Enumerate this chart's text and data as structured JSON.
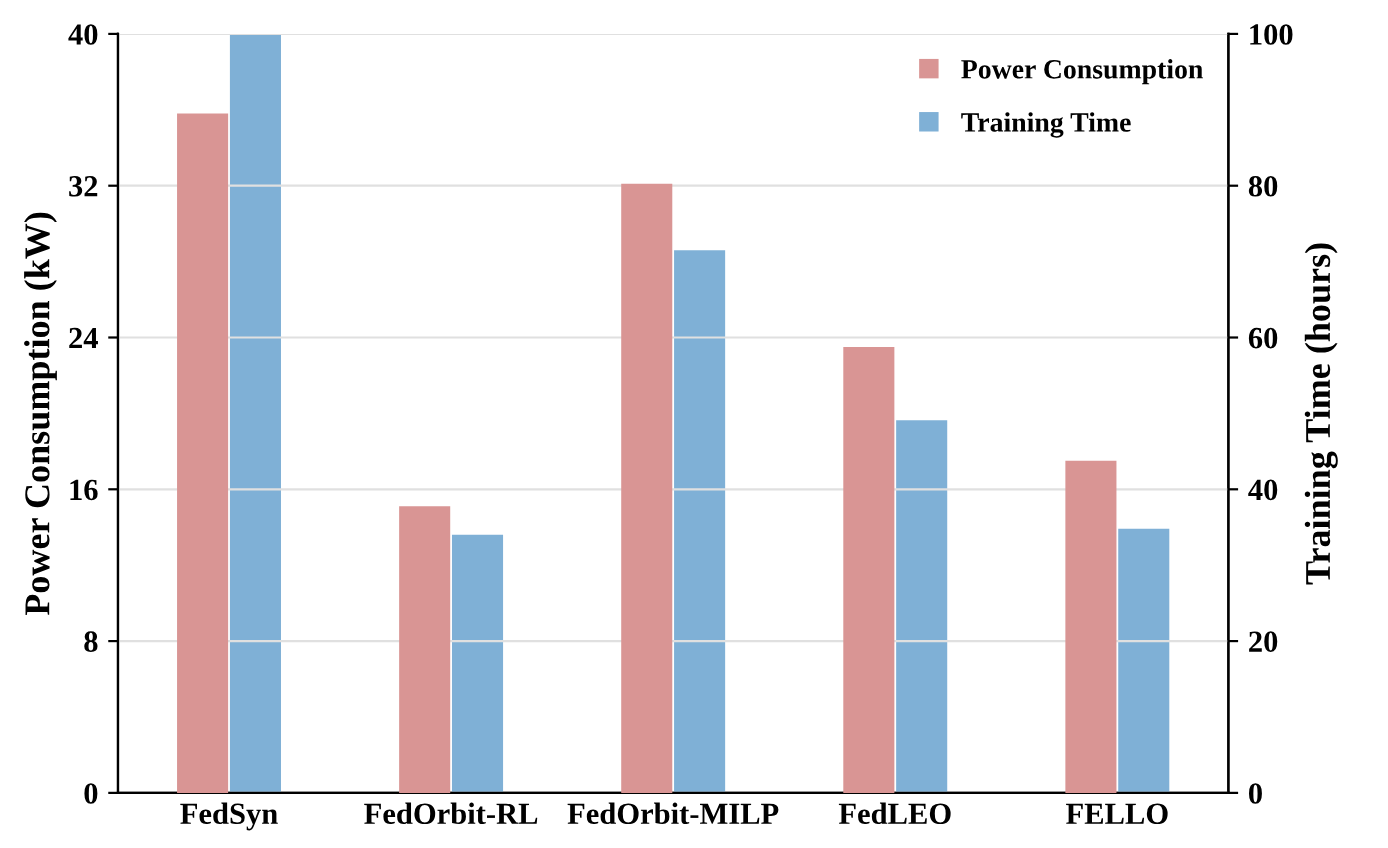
{
  "chart_data": {
    "type": "bar",
    "categories": [
      "FedSyn",
      "FedOrbit-RL",
      "FedOrbit-MILP",
      "FedLEO",
      "FELLO"
    ],
    "series": [
      {
        "name": "Power Consumption",
        "color": "#d99594",
        "values": [
          35.8,
          15.1,
          32.1,
          23.5,
          17.5
        ]
      },
      {
        "name": "Training Time",
        "color": "#7fb0d6",
        "axis": "y2",
        "values": [
          100,
          34.0,
          71.5,
          49.1,
          34.8
        ]
      }
    ],
    "ylabel": "Power Consumption (kW)",
    "y2label": "Training Time (hours)",
    "ylim": [
      0,
      40
    ],
    "yticks": [
      0,
      8,
      16,
      24,
      32,
      40
    ],
    "y2lim": [
      0,
      100
    ],
    "y2ticks": [
      0,
      20,
      40,
      60,
      80,
      100
    ],
    "grid": "y",
    "legend": "top right"
  }
}
